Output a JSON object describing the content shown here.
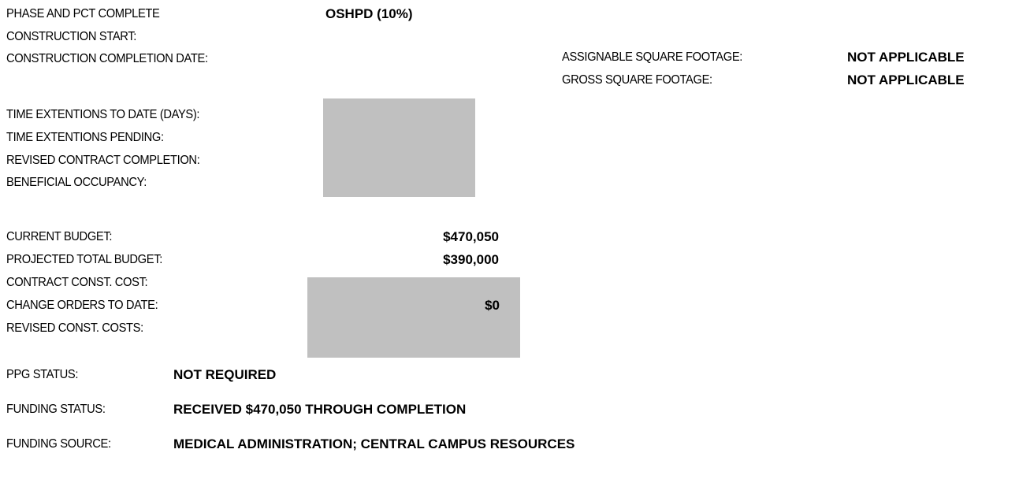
{
  "schedule": {
    "phase": {
      "label": "PHASE AND PCT COMPLETE",
      "value": "OSHPD  (10%)"
    },
    "construction_start": {
      "label": "CONSTRUCTION START:"
    },
    "construction_completion": {
      "label": "CONSTRUCTION COMPLETION DATE:"
    },
    "time_extensions_to_date": {
      "label": "TIME EXTENTIONS TO DATE (DAYS):"
    },
    "time_extensions_pending": {
      "label": "TIME EXTENTIONS PENDING:"
    },
    "revised_contract_completion": {
      "label": "REVISED CONTRACT COMPLETION:"
    },
    "beneficial_occupancy": {
      "label": "BENEFICIAL OCCUPANCY:"
    }
  },
  "footage": {
    "assignable": {
      "label": "ASSIGNABLE SQUARE FOOTAGE:",
      "value": "NOT APPLICABLE"
    },
    "gross": {
      "label": "GROSS SQUARE FOOTAGE:",
      "value": "NOT APPLICABLE"
    }
  },
  "budget": {
    "current": {
      "label": "CURRENT BUDGET:",
      "value": "$470,050"
    },
    "projected": {
      "label": "PROJECTED TOTAL BUDGET:",
      "value": "$390,000"
    },
    "contract_cost": {
      "label": "CONTRACT CONST. COST:"
    },
    "change_orders": {
      "label": "CHANGE ORDERS TO DATE:",
      "value": "$0"
    },
    "revised_costs": {
      "label": "REVISED CONST. COSTS:"
    }
  },
  "status": {
    "ppg": {
      "label": "PPG STATUS:",
      "value": "NOT REQUIRED"
    },
    "funding_status": {
      "label": "FUNDING STATUS:",
      "value": "RECEIVED $470,050 THROUGH COMPLETION"
    },
    "funding_source": {
      "label": "FUNDING SOURCE:",
      "value": "MEDICAL ADMINISTRATION; CENTRAL CAMPUS RESOURCES"
    }
  }
}
